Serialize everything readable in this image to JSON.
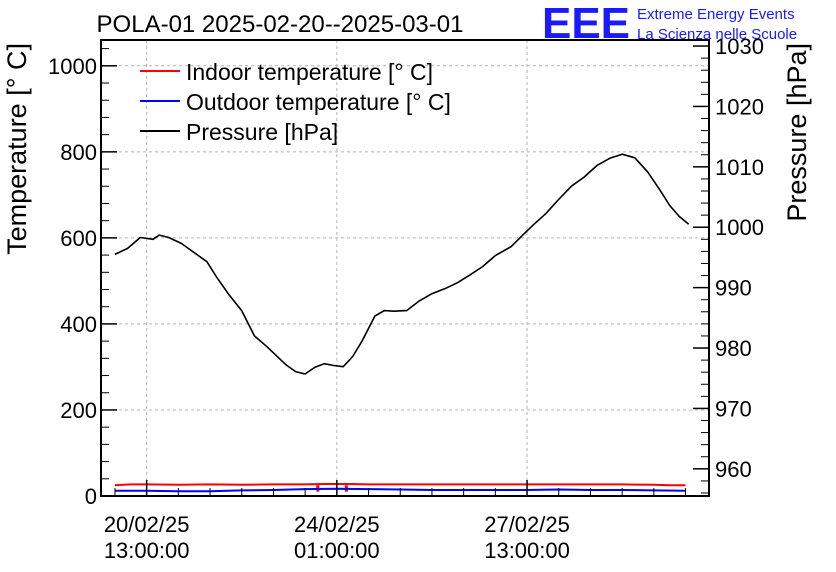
{
  "chart_data": {
    "type": "line",
    "title": "POLA-01 2025-02-20--2025-03-01",
    "ylabel": "Temperature [° C]",
    "y2label": "Pressure [hPa]",
    "xlabel": "",
    "ylim": [
      0,
      1060
    ],
    "y2lim": [
      955.5,
      1031
    ],
    "xlim": [
      -0.72,
      8.87
    ],
    "yticks": [
      {
        "value": 0,
        "label": "0"
      },
      {
        "value": 200,
        "label": "200"
      },
      {
        "value": 400,
        "label": "400"
      },
      {
        "value": 600,
        "label": "600"
      },
      {
        "value": 800,
        "label": "800"
      },
      {
        "value": 1000,
        "label": "1000"
      }
    ],
    "y2ticks": [
      {
        "value": 960,
        "label": "960"
      },
      {
        "value": 970,
        "label": "970"
      },
      {
        "value": 980,
        "label": "980"
      },
      {
        "value": 990,
        "label": "990"
      },
      {
        "value": 1000,
        "label": "1000"
      },
      {
        "value": 1010,
        "label": "1010"
      },
      {
        "value": 1020,
        "label": "1020"
      },
      {
        "value": 1030,
        "label": "1030"
      }
    ],
    "xticks": [
      {
        "value": 0,
        "date": "20/02/25",
        "time": "13:00:00"
      },
      {
        "value": 3,
        "date": "24/02/25",
        "time": "01:00:00"
      },
      {
        "value": 6,
        "date": "27/02/25",
        "time": "13:00:00"
      }
    ],
    "grid": true,
    "legend_position": "top-left",
    "series": [
      {
        "name": "Indoor temperature [° C]",
        "axis": "left",
        "color": "#ff0000",
        "x": [
          -0.5,
          -0.25,
          0,
          0.5,
          1,
          1.5,
          2,
          2.5,
          2.8,
          3,
          3.2,
          3.5,
          4,
          4.5,
          5,
          5.5,
          6,
          6.5,
          7,
          7.5,
          8,
          8.25,
          8.5
        ],
        "y": [
          25,
          27,
          27,
          26,
          27,
          26,
          27,
          27,
          28,
          28,
          28,
          27,
          27,
          27,
          27,
          27,
          27,
          27,
          27,
          27,
          26,
          25,
          25
        ],
        "spikes": [
          {
            "x": 2.7,
            "y": 10
          },
          {
            "x": 3.15,
            "y": 10
          }
        ]
      },
      {
        "name": "Outdoor temperature [° C]",
        "axis": "left",
        "color": "#0000ff",
        "x": [
          -0.5,
          0,
          0.5,
          1,
          1.5,
          2,
          2.5,
          3,
          3.5,
          4,
          4.5,
          5,
          5.5,
          6,
          6.5,
          7,
          7.5,
          8,
          8.5
        ],
        "y": [
          12,
          12,
          11,
          11,
          13,
          14,
          16,
          17,
          16,
          15,
          14,
          14,
          14,
          14,
          15,
          14,
          14,
          13,
          12
        ]
      },
      {
        "name": "Pressure [hPa]",
        "axis": "right",
        "color": "#000000",
        "x": [
          -0.5,
          -0.3,
          -0.1,
          0.1,
          0.2,
          0.35,
          0.55,
          0.75,
          0.95,
          1.1,
          1.3,
          1.5,
          1.7,
          1.9,
          2.1,
          2.2,
          2.35,
          2.5,
          2.65,
          2.8,
          2.95,
          3.1,
          3.25,
          3.4,
          3.6,
          3.75,
          3.9,
          4.1,
          4.3,
          4.5,
          4.7,
          4.9,
          5.1,
          5.3,
          5.5,
          5.75,
          5.95,
          6.1,
          6.3,
          6.5,
          6.7,
          6.9,
          7.1,
          7.3,
          7.5,
          7.7,
          7.9,
          8.1,
          8.25,
          8.4,
          8.55
        ],
        "y": [
          995.5,
          996.5,
          998.3,
          998,
          998.7,
          998.3,
          997.3,
          995.8,
          994.3,
          991.8,
          988.8,
          986.2,
          982,
          980.2,
          978.2,
          977.2,
          976.1,
          975.7,
          976.8,
          977.4,
          977.1,
          976.9,
          978.6,
          981.2,
          985.3,
          986.2,
          986.1,
          986.2,
          987.8,
          989,
          989.8,
          990.8,
          992.1,
          993.5,
          995.3,
          996.8,
          998.9,
          1000.4,
          1002.3,
          1004.6,
          1006.8,
          1008.3,
          1010.2,
          1011.4,
          1012.1,
          1011.5,
          1009.2,
          1006.1,
          1003.6,
          1001.8,
          1000.5
        ]
      }
    ]
  },
  "logo": {
    "mark": "EEE",
    "line1": "Extreme Energy Events",
    "line2": "La Scienza nelle Scuole",
    "color": "#1a1aff"
  }
}
